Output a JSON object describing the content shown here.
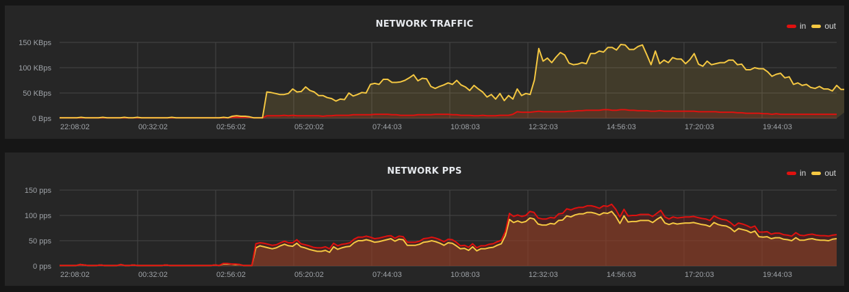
{
  "colors": {
    "in": "#e0110f",
    "out": "#f5c842",
    "grid": "#464646",
    "panel_bg": "#262626",
    "page_bg": "#161616"
  },
  "panels": [
    {
      "title": "NETWORK TRAFFIC",
      "legend": [
        {
          "label": "in",
          "color": "#e0110f"
        },
        {
          "label": "out",
          "color": "#f5c842"
        }
      ]
    },
    {
      "title": "NETWORK PPS",
      "legend": [
        {
          "label": "in",
          "color": "#e0110f"
        },
        {
          "label": "out",
          "color": "#f5c842"
        }
      ]
    }
  ],
  "chart_data": [
    {
      "type": "area",
      "title": "NETWORK TRAFFIC",
      "xlabel": "",
      "ylabel": "",
      "ylim": [
        0,
        150
      ],
      "y_unit": "KBps",
      "y_ticks": [
        "0 Bps",
        "50 KBps",
        "100 KBps",
        "150 KBps"
      ],
      "x_ticks": [
        "22:08:02",
        "00:32:02",
        "02:56:02",
        "05:20:02",
        "07:44:03",
        "10:08:03",
        "12:32:03",
        "14:56:03",
        "17:20:03",
        "19:44:03"
      ],
      "grid": true,
      "legend_position": "top-right",
      "stacked": false,
      "series": [
        {
          "name": "in",
          "color": "#e0110f",
          "values": [
            1,
            1,
            1,
            1,
            1,
            1,
            1,
            1,
            1,
            1,
            1,
            1,
            1,
            1,
            1,
            1,
            1,
            1,
            1,
            1,
            1,
            1,
            1,
            1,
            1,
            1,
            1,
            1,
            1,
            1,
            1,
            1,
            1,
            1,
            1,
            1,
            1,
            1,
            1,
            1,
            2,
            2,
            2,
            2,
            2,
            1,
            1,
            1,
            5,
            5,
            5,
            5,
            6,
            5,
            6,
            5,
            5,
            5,
            5,
            5,
            5,
            4,
            5,
            5,
            6,
            6,
            6,
            6,
            7,
            7,
            7,
            7,
            7,
            8,
            8,
            8,
            8,
            7,
            7,
            6,
            6,
            6,
            6,
            7,
            7,
            7,
            7,
            8,
            8,
            8,
            8,
            7,
            7,
            6,
            6,
            6,
            5,
            5,
            6,
            5,
            5,
            5,
            6,
            6,
            6,
            8,
            13,
            12,
            12,
            12,
            13,
            14,
            13,
            13,
            13,
            13,
            13,
            13,
            14,
            14,
            15,
            15,
            16,
            16,
            16,
            16,
            17,
            17,
            16,
            16,
            17,
            17,
            16,
            16,
            15,
            15,
            15,
            14,
            14,
            15,
            14,
            14,
            14,
            14,
            14,
            14,
            14,
            14,
            13,
            13,
            13,
            13,
            13,
            12,
            12,
            12,
            12,
            11,
            11,
            10,
            10,
            10,
            10,
            9,
            9,
            8,
            9,
            8,
            8,
            8,
            8,
            8,
            8,
            8,
            8,
            8,
            8,
            8,
            8,
            8,
            8
          ]
        },
        {
          "name": "out",
          "color": "#f5c842",
          "values": [
            1,
            1,
            1,
            1,
            1,
            2,
            1,
            1,
            1,
            1,
            2,
            1,
            1,
            1,
            1,
            2,
            1,
            1,
            2,
            1,
            1,
            1,
            1,
            1,
            1,
            1,
            2,
            1,
            1,
            1,
            1,
            1,
            1,
            1,
            1,
            1,
            1,
            1,
            2,
            1,
            4,
            5,
            4,
            4,
            3,
            1,
            1,
            1,
            52,
            51,
            49,
            47,
            47,
            49,
            58,
            52,
            53,
            62,
            55,
            52,
            45,
            45,
            41,
            39,
            34,
            38,
            37,
            50,
            44,
            47,
            51,
            50,
            67,
            69,
            67,
            77,
            77,
            71,
            71,
            72,
            75,
            80,
            86,
            74,
            79,
            78,
            63,
            59,
            63,
            66,
            70,
            67,
            75,
            66,
            62,
            55,
            65,
            58,
            52,
            42,
            47,
            38,
            49,
            35,
            45,
            38,
            58,
            45,
            49,
            47,
            76,
            138,
            113,
            119,
            110,
            121,
            130,
            125,
            109,
            106,
            107,
            110,
            108,
            128,
            128,
            133,
            131,
            140,
            140,
            135,
            146,
            145,
            136,
            136,
            142,
            145,
            126,
            106,
            133,
            108,
            115,
            110,
            120,
            117,
            117,
            108,
            116,
            128,
            107,
            103,
            113,
            106,
            108,
            110,
            110,
            115,
            115,
            106,
            107,
            96,
            96,
            100,
            98,
            98,
            92,
            83,
            87,
            89,
            80,
            82,
            67,
            70,
            65,
            67,
            61,
            59,
            63,
            58,
            58,
            54,
            65,
            57,
            57,
            63,
            60,
            58,
            56,
            55,
            56,
            59
          ]
        }
      ]
    },
    {
      "type": "area",
      "title": "NETWORK PPS",
      "xlabel": "",
      "ylabel": "",
      "ylim": [
        0,
        150
      ],
      "y_unit": "pps",
      "y_ticks": [
        "0 pps",
        "50 pps",
        "100 pps",
        "150 pps"
      ],
      "x_ticks": [
        "22:08:02",
        "00:32:02",
        "02:56:02",
        "05:20:02",
        "07:44:03",
        "10:08:03",
        "12:32:03",
        "14:56:03",
        "17:20:03",
        "19:44:03"
      ],
      "grid": true,
      "legend_position": "top-right",
      "stacked": false,
      "series": [
        {
          "name": "in",
          "color": "#e0110f",
          "values": [
            1,
            1,
            1,
            1,
            1,
            3,
            2,
            1,
            1,
            1,
            2,
            1,
            1,
            1,
            1,
            3,
            1,
            1,
            2,
            1,
            1,
            1,
            1,
            1,
            1,
            1,
            2,
            1,
            1,
            1,
            1,
            1,
            1,
            1,
            1,
            1,
            1,
            1,
            2,
            1,
            5,
            5,
            4,
            4,
            3,
            1,
            1,
            1,
            44,
            46,
            45,
            43,
            41,
            42,
            46,
            49,
            46,
            46,
            52,
            44,
            42,
            40,
            37,
            36,
            36,
            38,
            34,
            45,
            40,
            43,
            44,
            46,
            53,
            57,
            57,
            59,
            57,
            54,
            55,
            57,
            59,
            60,
            55,
            59,
            58,
            47,
            47,
            47,
            49,
            54,
            55,
            57,
            55,
            52,
            48,
            53,
            52,
            47,
            40,
            41,
            37,
            44,
            36,
            40,
            40,
            43,
            44,
            48,
            51,
            68,
            104,
            98,
            101,
            98,
            100,
            108,
            106,
            95,
            93,
            93,
            96,
            95,
            103,
            104,
            113,
            111,
            114,
            116,
            116,
            119,
            119,
            117,
            114,
            119,
            118,
            122,
            112,
            97,
            112,
            99,
            100,
            100,
            102,
            102,
            102,
            98,
            104,
            110,
            97,
            93,
            97,
            95,
            96,
            97,
            97,
            98,
            96,
            94,
            93,
            90,
            99,
            95,
            92,
            91,
            86,
            79,
            85,
            83,
            80,
            76,
            79,
            67,
            67,
            68,
            63,
            65,
            65,
            62,
            61,
            59,
            66,
            61,
            60,
            62,
            63,
            61,
            60,
            60,
            59,
            61,
            62
          ]
        },
        {
          "name": "out",
          "color": "#f5c842",
          "values": [
            1,
            1,
            1,
            1,
            1,
            3,
            2,
            1,
            1,
            1,
            2,
            1,
            1,
            1,
            1,
            3,
            1,
            1,
            2,
            1,
            1,
            1,
            1,
            1,
            1,
            1,
            2,
            1,
            1,
            1,
            1,
            1,
            1,
            1,
            1,
            1,
            1,
            1,
            2,
            1,
            4,
            4,
            4,
            3,
            3,
            1,
            1,
            1,
            36,
            40,
            38,
            36,
            34,
            36,
            40,
            43,
            40,
            39,
            45,
            38,
            36,
            33,
            31,
            29,
            29,
            31,
            27,
            38,
            33,
            36,
            38,
            39,
            46,
            50,
            50,
            52,
            50,
            47,
            48,
            50,
            52,
            54,
            49,
            53,
            52,
            41,
            41,
            41,
            43,
            47,
            48,
            50,
            48,
            45,
            41,
            46,
            45,
            40,
            34,
            35,
            31,
            38,
            30,
            34,
            34,
            36,
            37,
            41,
            44,
            60,
            92,
            86,
            89,
            86,
            88,
            95,
            93,
            83,
            81,
            81,
            84,
            83,
            90,
            91,
            99,
            97,
            101,
            103,
            103,
            106,
            106,
            104,
            101,
            105,
            104,
            108,
            98,
            84,
            99,
            87,
            88,
            88,
            90,
            90,
            90,
            86,
            92,
            97,
            85,
            82,
            85,
            83,
            84,
            85,
            85,
            86,
            84,
            82,
            81,
            78,
            86,
            82,
            80,
            79,
            75,
            68,
            74,
            72,
            70,
            66,
            69,
            58,
            57,
            58,
            54,
            56,
            56,
            53,
            52,
            50,
            56,
            51,
            51,
            53,
            54,
            52,
            51,
            51,
            50,
            53,
            54
          ]
        }
      ]
    }
  ]
}
